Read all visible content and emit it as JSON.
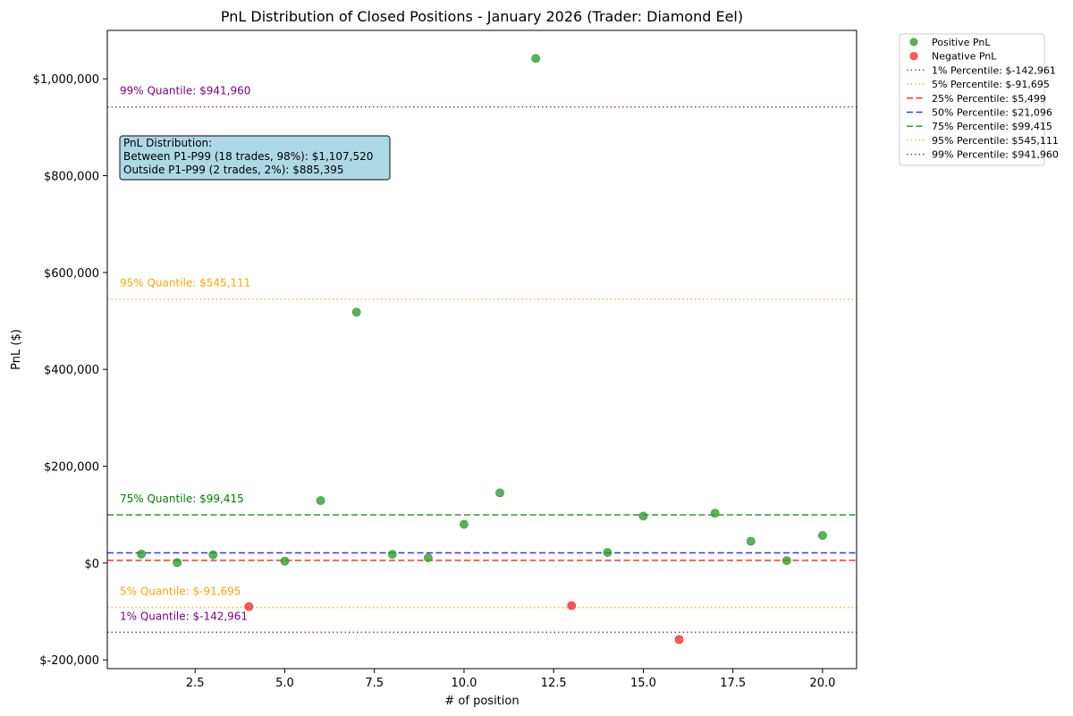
{
  "chart_data": {
    "type": "scatter",
    "title": "PnL Distribution of Closed Positions - January 2026 (Trader: Diamond Eel)",
    "xlabel": "# of position",
    "ylabel": "PnL ($)",
    "xlim": [
      0.05,
      20.95
    ],
    "ylim": [
      -218000,
      1100000
    ],
    "grid": false,
    "legend_placement": "outside upper right",
    "x_ticks": [
      2.5,
      5.0,
      7.5,
      10.0,
      12.5,
      15.0,
      17.5,
      20.0
    ],
    "x_tick_labels": [
      "2.5",
      "5.0",
      "7.5",
      "10.0",
      "12.5",
      "15.0",
      "17.5",
      "20.0"
    ],
    "y_ticks": [
      -200000,
      0,
      200000,
      400000,
      600000,
      800000,
      1000000
    ],
    "y_tick_labels": [
      "$-200,000",
      "$0",
      "$200,000",
      "$400,000",
      "$600,000",
      "$800,000",
      "$1,000,000"
    ],
    "series": [
      {
        "name": "Positive PnL",
        "color": "#2ca02c",
        "points": [
          {
            "x": 1,
            "y": 18500
          },
          {
            "x": 2,
            "y": 1000
          },
          {
            "x": 3,
            "y": 17000
          },
          {
            "x": 5,
            "y": 4000
          },
          {
            "x": 6,
            "y": 129000
          },
          {
            "x": 7,
            "y": 518000
          },
          {
            "x": 8,
            "y": 18000
          },
          {
            "x": 9,
            "y": 11000
          },
          {
            "x": 10,
            "y": 80000
          },
          {
            "x": 11,
            "y": 145000
          },
          {
            "x": 12,
            "y": 1042000
          },
          {
            "x": 14,
            "y": 22000
          },
          {
            "x": 15,
            "y": 97000
          },
          {
            "x": 17,
            "y": 103000
          },
          {
            "x": 18,
            "y": 45000
          },
          {
            "x": 19,
            "y": 5000
          },
          {
            "x": 20,
            "y": 57000
          }
        ]
      },
      {
        "name": "Negative PnL",
        "color": "#ff2a2a",
        "points": [
          {
            "x": 4,
            "y": -90000
          },
          {
            "x": 13,
            "y": -88000
          },
          {
            "x": 16,
            "y": -158000
          }
        ]
      }
    ],
    "reference_lines": [
      {
        "legend": "1% Percentile: $-142,961",
        "value": -142961,
        "color": "#800080",
        "style": "dotted",
        "annotation": "1% Quantile: $-142,961"
      },
      {
        "legend": "5% Percentile: $-91,695",
        "value": -91695,
        "color": "#ffa500",
        "style": "dotted",
        "annotation": "5% Quantile: $-91,695"
      },
      {
        "legend": "25% Percentile: $5,499",
        "value": 5499,
        "color": "#ff0000",
        "style": "dashed",
        "annotation": ""
      },
      {
        "legend": "50% Percentile: $21,096",
        "value": 21096,
        "color": "#0000ff",
        "style": "dashed",
        "annotation": ""
      },
      {
        "legend": "75% Percentile: $99,415",
        "value": 99415,
        "color": "#008000",
        "style": "dashed",
        "annotation": "75% Quantile: $99,415"
      },
      {
        "legend": "95% Percentile: $545,111",
        "value": 545111,
        "color": "#ffa500",
        "style": "dotted",
        "annotation": "95% Quantile: $545,111"
      },
      {
        "legend": "99% Percentile: $941,960",
        "value": 941960,
        "color": "#800080",
        "style": "dotted",
        "annotation": "99% Quantile: $941,960"
      }
    ],
    "info_box": {
      "lines": [
        "PnL Distribution:",
        "Between P1-P99 (18 trades, 98%): $1,107,520",
        "Outside P1-P99 (2 trades, 2%): $885,395"
      ],
      "background": "#add8e6"
    }
  }
}
